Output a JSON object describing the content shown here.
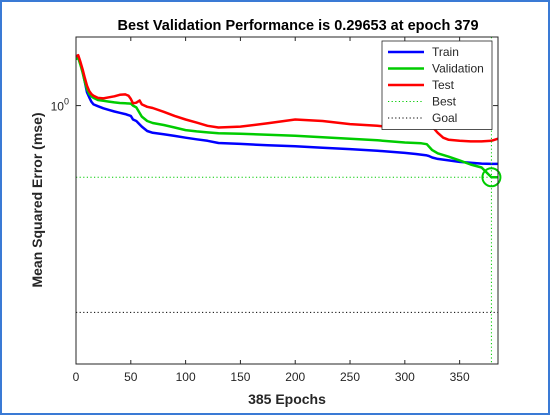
{
  "chart_data": {
    "type": "line",
    "title": "Best Validation Performance is 0.29653 at epoch 379",
    "xlabel": "385 Epochs",
    "ylabel": "Mean Squared Error  (mse)",
    "xlim": [
      0,
      385
    ],
    "xticks": [
      0,
      50,
      100,
      150,
      200,
      250,
      300,
      350
    ],
    "ylim": [
      0.0125,
      3.2
    ],
    "yscale": "log",
    "yticks": [
      {
        "value": 1,
        "label": "10",
        "sup": "0"
      }
    ],
    "grid": false,
    "legend": {
      "position": "top-right"
    },
    "series": [
      {
        "name": "Train",
        "color": "#0000ff",
        "style": "solid",
        "x": [
          0,
          2,
          4,
          6,
          8,
          10,
          12,
          14,
          16,
          20,
          25,
          30,
          35,
          40,
          45,
          48,
          50,
          52,
          55,
          60,
          65,
          70,
          80,
          90,
          100,
          110,
          120,
          130,
          150,
          175,
          200,
          225,
          250,
          275,
          300,
          310,
          320,
          322,
          325,
          330,
          340,
          350,
          360,
          370,
          379,
          385
        ],
        "y": [
          2.25,
          2.3,
          2.05,
          1.8,
          1.5,
          1.25,
          1.15,
          1.07,
          1.02,
          0.99,
          0.955,
          0.93,
          0.905,
          0.885,
          0.865,
          0.85,
          0.84,
          0.79,
          0.77,
          0.7,
          0.65,
          0.63,
          0.615,
          0.598,
          0.58,
          0.565,
          0.55,
          0.53,
          0.522,
          0.51,
          0.502,
          0.49,
          0.478,
          0.465,
          0.448,
          0.44,
          0.43,
          0.425,
          0.415,
          0.405,
          0.395,
          0.385,
          0.379,
          0.374,
          0.372,
          0.372
        ]
      },
      {
        "name": "Validation",
        "color": "#00cc00",
        "style": "solid",
        "x": [
          0,
          2,
          4,
          6,
          8,
          10,
          12,
          14,
          16,
          20,
          25,
          30,
          35,
          40,
          45,
          50,
          52,
          55,
          60,
          65,
          70,
          80,
          90,
          100,
          110,
          120,
          130,
          150,
          175,
          200,
          225,
          250,
          275,
          300,
          310,
          315,
          320,
          325,
          330,
          340,
          350,
          360,
          370,
          379,
          385
        ],
        "y": [
          2.2,
          2.25,
          2.0,
          1.75,
          1.5,
          1.32,
          1.22,
          1.17,
          1.14,
          1.1,
          1.085,
          1.07,
          1.055,
          1.045,
          1.04,
          1.035,
          1.0,
          0.97,
          0.83,
          0.77,
          0.745,
          0.72,
          0.69,
          0.66,
          0.645,
          0.635,
          0.625,
          0.62,
          0.61,
          0.6,
          0.585,
          0.57,
          0.555,
          0.535,
          0.53,
          0.528,
          0.52,
          0.47,
          0.445,
          0.42,
          0.395,
          0.368,
          0.35,
          0.2965,
          0.2965
        ]
      },
      {
        "name": "Test",
        "color": "#ff0000",
        "style": "solid",
        "x": [
          0,
          2,
          4,
          6,
          8,
          10,
          12,
          14,
          16,
          20,
          25,
          30,
          35,
          40,
          45,
          48,
          50,
          52,
          55,
          58,
          60,
          65,
          70,
          80,
          90,
          100,
          110,
          120,
          130,
          150,
          175,
          200,
          225,
          250,
          275,
          300,
          305,
          310,
          315,
          318,
          320,
          322,
          325,
          330,
          335,
          340,
          350,
          360,
          370,
          379,
          385
        ],
        "y": [
          2.3,
          2.35,
          2.1,
          1.85,
          1.6,
          1.4,
          1.28,
          1.22,
          1.18,
          1.14,
          1.13,
          1.15,
          1.17,
          1.2,
          1.21,
          1.18,
          1.12,
          1.04,
          1.05,
          1.09,
          1.02,
          0.98,
          0.96,
          0.9,
          0.84,
          0.79,
          0.75,
          0.71,
          0.69,
          0.7,
          0.74,
          0.79,
          0.77,
          0.73,
          0.71,
          0.68,
          0.69,
          0.71,
          0.74,
          0.77,
          0.78,
          0.77,
          0.7,
          0.63,
          0.58,
          0.56,
          0.55,
          0.545,
          0.545,
          0.55,
          0.57
        ]
      },
      {
        "name": "Best",
        "color": "#00cc00",
        "style": "dotted",
        "kind": "crosshair",
        "x": 379,
        "y": 0.29653
      },
      {
        "name": "Goal",
        "color": "#000000",
        "style": "dotted",
        "kind": "hline",
        "y": 0.03
      }
    ]
  }
}
